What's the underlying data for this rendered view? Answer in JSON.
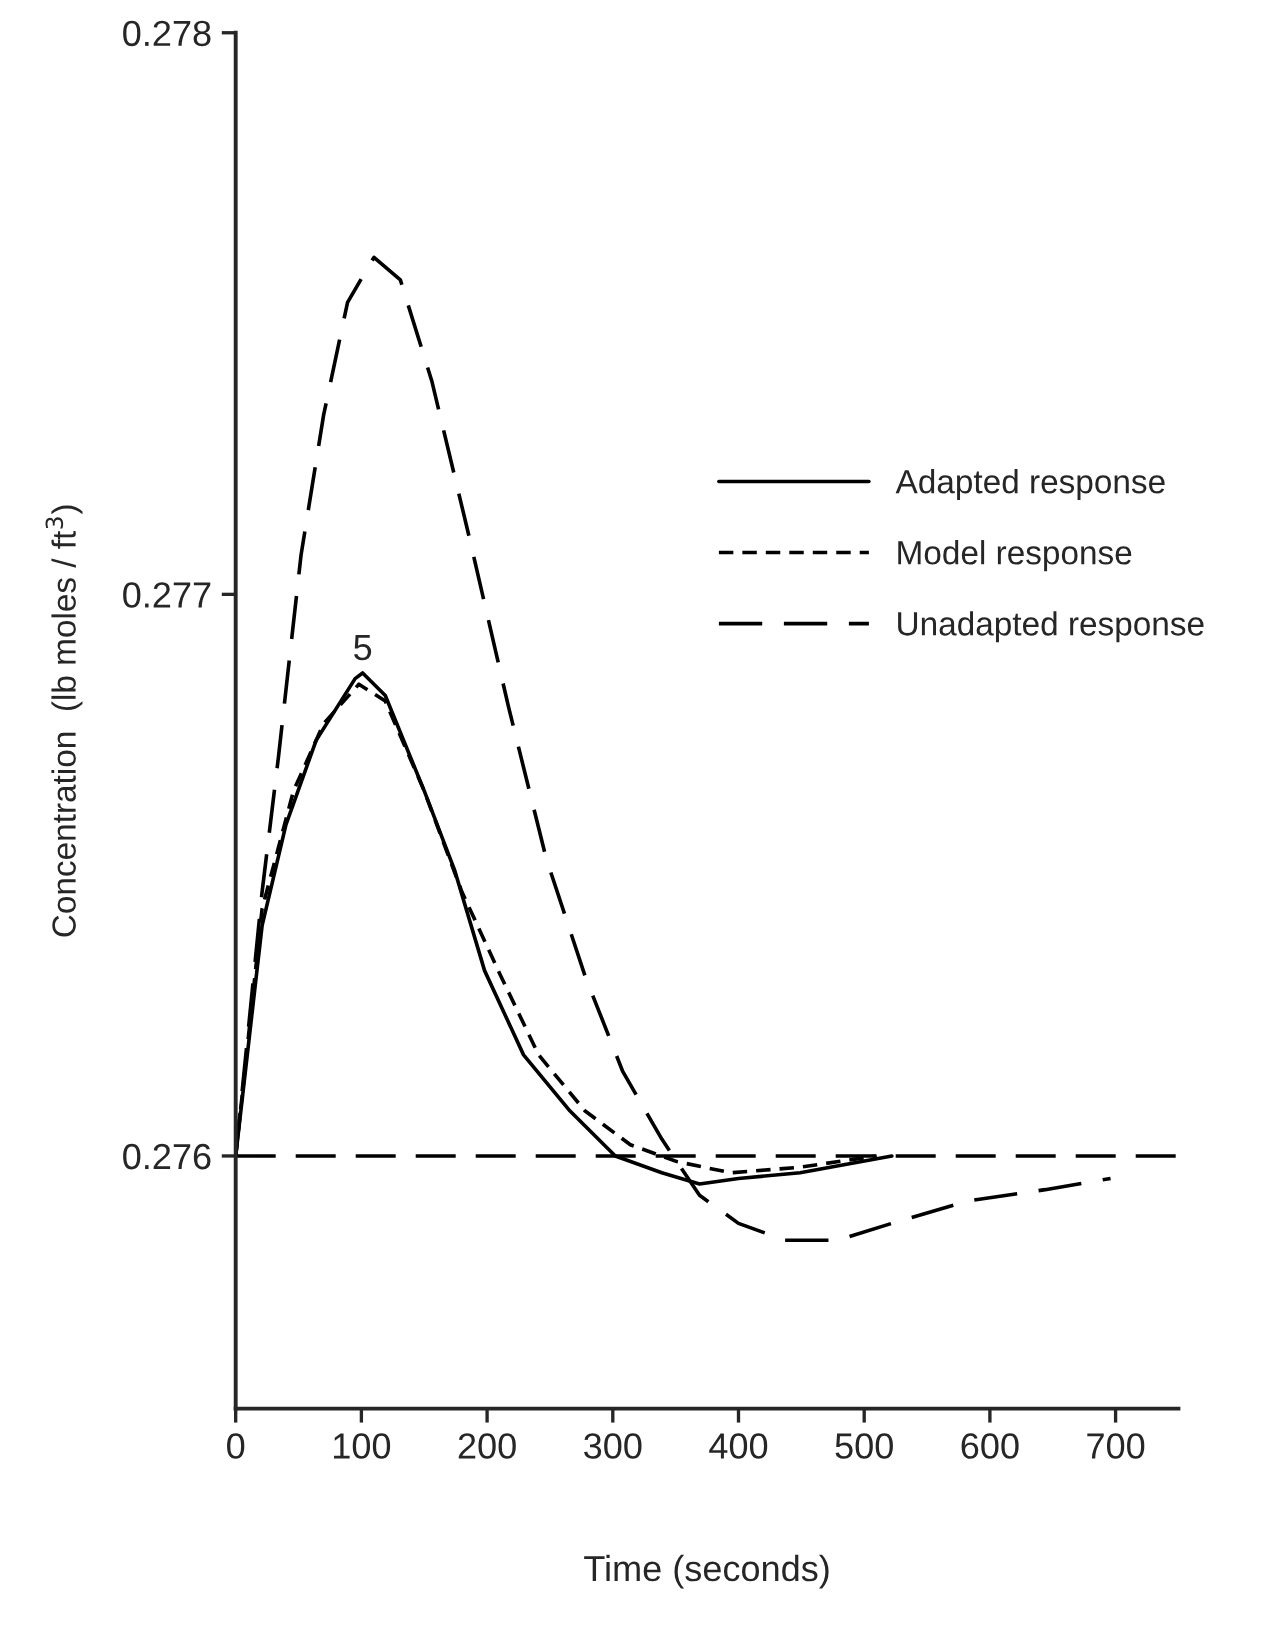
{
  "chart_data": {
    "type": "line",
    "xlabel": "Time (seconds)",
    "ylabel": "Concentration  (lb moles / ft$^{3}$)",
    "xlim": [
      0,
      750
    ],
    "xticks": [
      0,
      100,
      200,
      300,
      400,
      500,
      600,
      700
    ],
    "ylim": [
      0.27555,
      0.278
    ],
    "yticks": [
      0.276,
      0.277,
      0.278
    ],
    "grid": false,
    "legend": "right",
    "marker": "none",
    "annotations": [
      "5"
    ],
    "ref_lines": [
      {
        "axis": "y",
        "value": 0.276,
        "color": "#000000",
        "line_style": "dashed"
      }
    ],
    "series": [
      {
        "name": "Adapted response",
        "color": "#000000",
        "line_style": "solid",
        "x": [
          0,
          21,
          40,
          64,
          95,
          101,
          119,
          150,
          174,
          198,
          229,
          266,
          302,
          339,
          369,
          400,
          449,
          522
        ],
        "values": [
          0.276,
          0.27641,
          0.27659,
          0.27674,
          0.27685,
          0.27686,
          0.27682,
          0.27665,
          0.27651,
          0.27633,
          0.27618,
          0.27608,
          0.276,
          0.27597,
          0.27595,
          0.27596,
          0.27597,
          0.276
        ]
      },
      {
        "name": "Model response",
        "color": "#000000",
        "line_style": "dashed",
        "x": [
          0,
          21,
          46,
          70,
          98,
          119,
          150,
          180,
          211,
          241,
          278,
          314,
          351,
          394,
          449,
          510
        ],
        "values": [
          0.276,
          0.27644,
          0.27665,
          0.27677,
          0.27684,
          0.27681,
          0.27665,
          0.27647,
          0.27632,
          0.27618,
          0.27608,
          0.27602,
          0.27599,
          0.27597,
          0.27598,
          0.276
        ]
      },
      {
        "name": "Unadapted response",
        "color": "#000000",
        "line_style": "dashed",
        "x": [
          0,
          21,
          34,
          52,
          70,
          89,
          110,
          131,
          156,
          186,
          217,
          247,
          278,
          308,
          339,
          369,
          400,
          437,
          479,
          522,
          583,
          644,
          696
        ],
        "values": [
          0.276,
          0.27647,
          0.27671,
          0.27707,
          0.27732,
          0.27752,
          0.2776,
          0.27756,
          0.27738,
          0.2771,
          0.2768,
          0.27653,
          0.27632,
          0.27615,
          0.27603,
          0.27593,
          0.27588,
          0.27585,
          0.27585,
          0.27588,
          0.27592,
          0.27594,
          0.27596
        ]
      }
    ]
  }
}
